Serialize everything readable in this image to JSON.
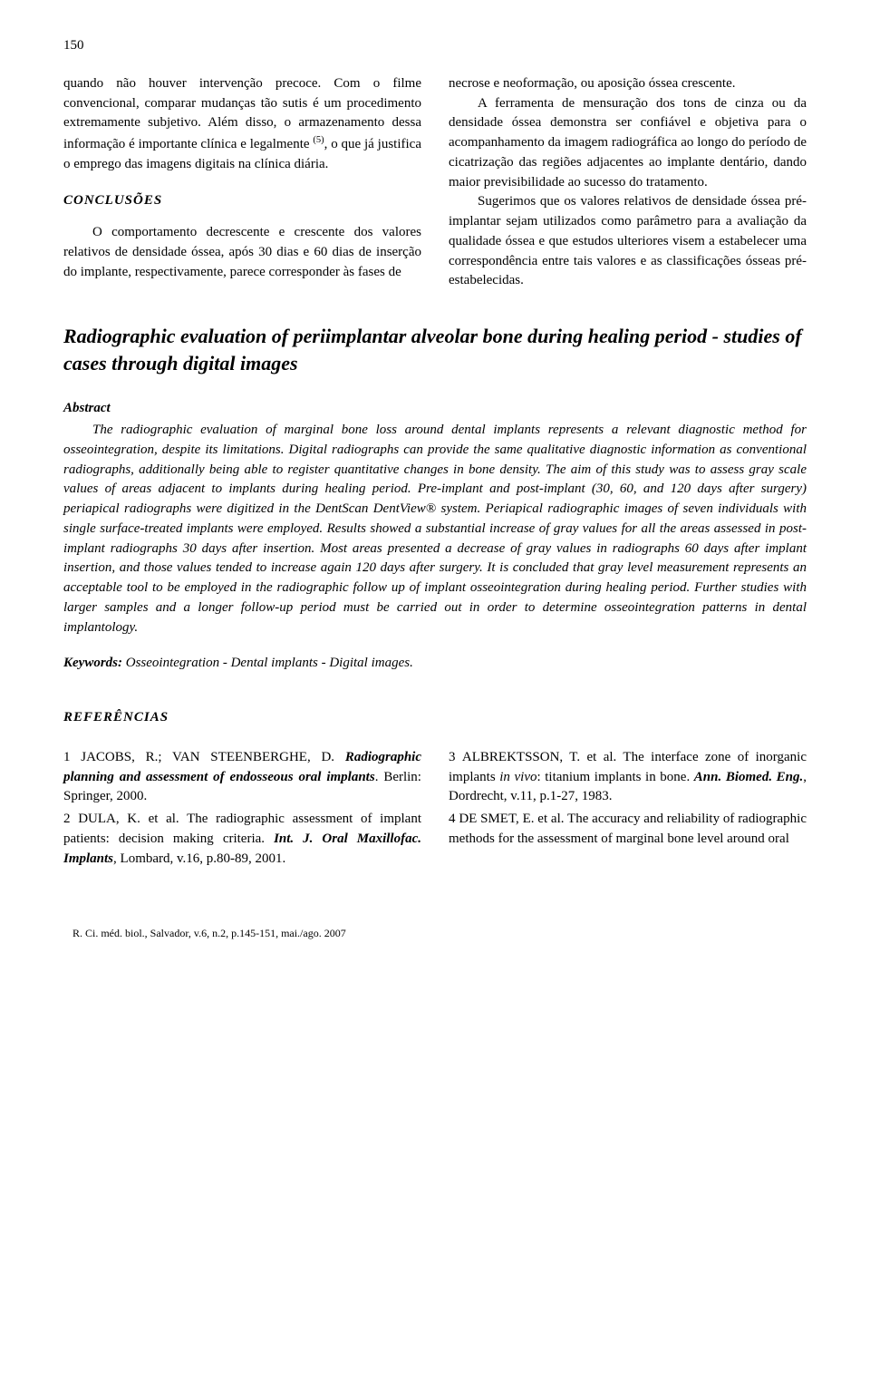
{
  "page_number": "150",
  "left_col": {
    "p1": "quando não houver intervenção precoce. Com o filme convencional, comparar mudanças tão sutis é um procedimento extremamente subjetivo. Além disso, o armazenamento dessa informação é importante clínica e legalmente ",
    "p1_ref": "(5)",
    "p1_end": ", o que já justifica o emprego das imagens digitais na clínica diária.",
    "conclusions_heading": "CONCLUSÕES",
    "p2": "O comportamento decrescente e crescente dos valores relativos de densidade óssea, após 30 dias e 60 dias de inserção do implante, respectivamente, parece corresponder às fases de"
  },
  "right_col": {
    "p1": "necrose e neoformação, ou aposição óssea crescente.",
    "p2": "A ferramenta de mensuração dos tons de cinza ou da densidade óssea demonstra ser confiável e objetiva para o acompanhamento da imagem radiográfica ao longo do período de cicatrização das regiões adjacentes ao implante dentário, dando maior previsibilidade ao sucesso do tratamento.",
    "p3": "Sugerimos que os valores relativos de densidade óssea pré-implantar sejam utilizados como parâmetro para a avaliação da qualidade óssea e que estudos ulteriores visem a estabelecer uma correspondência entre tais valores e as classificações ósseas pré-estabelecidas."
  },
  "english_title": "Radiographic evaluation of periimplantar alveolar bone during healing period - studies of cases through digital images",
  "abstract_label": "Abstract",
  "abstract_body": "The radiographic evaluation of marginal bone loss around dental implants represents a relevant diagnostic method for osseointegration, despite its limitations. Digital radiographs can provide the same qualitative diagnostic information as conventional radiographs, additionally being able to register quantitative changes in bone density. The aim of this study was to assess gray scale values of areas adjacent to implants during healing period. Pre-implant and post-implant (30, 60, and 120 days after surgery) periapical radiographs were digitized in the DentScan DentView® system. Periapical radiographic images of seven individuals with single surface-treated implants were employed. Results showed a substantial increase of gray values for all the areas assessed in post-implant radiographs 30 days after insertion. Most areas presented a decrease of gray values in radiographs 60 days after implant insertion, and those values tended to increase again 120 days after surgery. It is concluded that gray level measurement represents an acceptable tool to be employed in the radiographic follow up of implant osseointegration during healing period. Further studies with larger samples and a longer follow-up period must be carried out in order to determine osseointegration patterns in dental implantology.",
  "keywords_label": "Keywords:",
  "keywords_text": " Osseointegration - Dental implants - Digital images.",
  "references_heading": "REFERÊNCIAS",
  "refs_left": [
    {
      "num": "1",
      "authors": "JACOBS, R.; VAN STEENBERGHE, D.",
      "title": "Radiographic planning and assessment of endosseous oral implants",
      "rest": ". Berlin: Springer, 2000."
    },
    {
      "num": "2",
      "authors": "DULA, K. et al. The radiographic assessment of implant patients: decision making criteria.",
      "title": "Int. J. Oral Maxillofac. Implants",
      "rest": ", Lombard, v.16, p.80-89, 2001."
    }
  ],
  "refs_right": [
    {
      "num": "3",
      "authors": "ALBREKTSSON, T. et al. The interface zone of inorganic implants ",
      "ital": "in vivo",
      "mid": ": titanium implants in bone. ",
      "title": "Ann. Biomed. Eng.",
      "rest": ", Dordrecht, v.11, p.1-27, 1983."
    },
    {
      "num": "4",
      "authors": "DE SMET, E. et al. The accuracy and reliability of radiographic methods for the assessment of marginal bone level around oral"
    }
  ],
  "footer": "R. Ci. méd. biol., Salvador, v.6, n.2, p.145-151, mai./ago. 2007"
}
